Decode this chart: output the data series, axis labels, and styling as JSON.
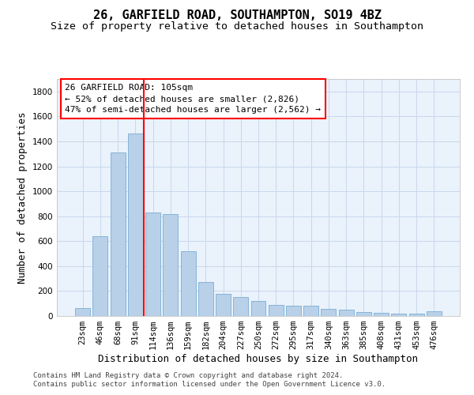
{
  "title": "26, GARFIELD ROAD, SOUTHAMPTON, SO19 4BZ",
  "subtitle": "Size of property relative to detached houses in Southampton",
  "xlabel": "Distribution of detached houses by size in Southampton",
  "ylabel": "Number of detached properties",
  "categories": [
    "23sqm",
    "46sqm",
    "68sqm",
    "91sqm",
    "114sqm",
    "136sqm",
    "159sqm",
    "182sqm",
    "204sqm",
    "227sqm",
    "250sqm",
    "272sqm",
    "295sqm",
    "317sqm",
    "340sqm",
    "363sqm",
    "385sqm",
    "408sqm",
    "431sqm",
    "453sqm",
    "476sqm"
  ],
  "values": [
    65,
    640,
    1310,
    1460,
    830,
    820,
    520,
    270,
    180,
    155,
    120,
    90,
    85,
    80,
    55,
    50,
    30,
    25,
    20,
    20,
    40
  ],
  "bar_color": "#b8d0e8",
  "bar_edge_color": "#7aadd4",
  "grid_color": "#c8d8ec",
  "background_color": "#eaf2fb",
  "red_line_x": 3.5,
  "ylim": [
    0,
    1900
  ],
  "yticks": [
    0,
    200,
    400,
    600,
    800,
    1000,
    1200,
    1400,
    1600,
    1800
  ],
  "annotation_title": "26 GARFIELD ROAD: 105sqm",
  "annotation_line1": "← 52% of detached houses are smaller (2,826)",
  "annotation_line2": "47% of semi-detached houses are larger (2,562) →",
  "footer_line1": "Contains HM Land Registry data © Crown copyright and database right 2024.",
  "footer_line2": "Contains public sector information licensed under the Open Government Licence v3.0.",
  "title_fontsize": 11,
  "subtitle_fontsize": 9.5,
  "axis_label_fontsize": 9,
  "tick_fontsize": 7.5,
  "annotation_fontsize": 8,
  "footer_fontsize": 6.5
}
